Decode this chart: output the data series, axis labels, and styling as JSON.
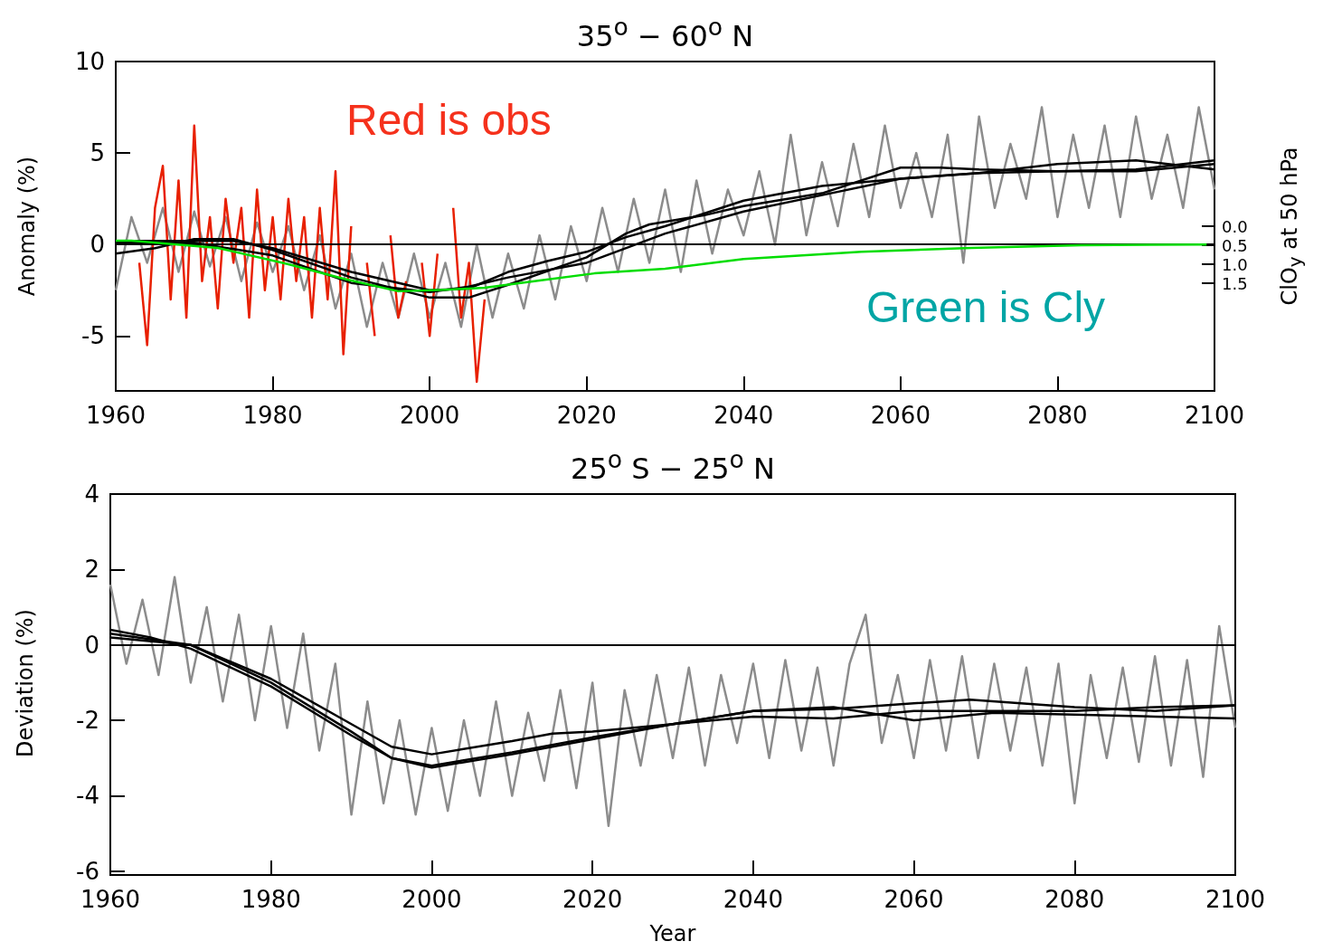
{
  "chart_data": [
    {
      "type": "line",
      "title": "35$^{o}$ − 60$^{o}$ N",
      "ylabel": "Anomaly (%)",
      "y2label": "ClO$_{y}$ at 50 hPa",
      "annotations": [
        "Red is obs",
        "Green is Cly"
      ],
      "xlim": [
        1960,
        2100
      ],
      "xticks": [
        1960,
        1980,
        2000,
        2020,
        2040,
        2060,
        2080,
        2100
      ],
      "ylim": [
        -8,
        10
      ],
      "yticks": [
        -5,
        0,
        5,
        10
      ],
      "y2lim": [
        4.33,
        -4.33
      ],
      "y2ticks": [
        {
          "value": 0,
          "label": "0.0"
        },
        0.5,
        {
          "value": 1,
          "label": "1.0"
        },
        1.5
      ],
      "grid": false,
      "marker": "none",
      "ref_lines": [
        {
          "axis": "y",
          "value": 0,
          "color": "#000000"
        }
      ],
      "series": [
        {
          "color": "#8c8c8c",
          "x": [
            1960,
            1962,
            1964,
            1966,
            1968,
            1970,
            1972,
            1974,
            1976,
            1978,
            1980,
            1982,
            1984,
            1986,
            1988,
            1990,
            1992,
            1994,
            1996,
            1998,
            2000,
            2002,
            2004,
            2006,
            2008,
            2010,
            2012,
            2014,
            2016,
            2018,
            2020,
            2022,
            2024,
            2026,
            2028,
            2030,
            2032,
            2034,
            2036,
            2038,
            2040,
            2042,
            2044,
            2046,
            2048,
            2050,
            2052,
            2054,
            2056,
            2058,
            2060,
            2062,
            2064,
            2066,
            2068,
            2070,
            2072,
            2074,
            2076,
            2078,
            2080,
            2082,
            2084,
            2086,
            2088,
            2090,
            2092,
            2094,
            2096,
            2098,
            2100
          ],
          "values": [
            -2.5,
            1.5,
            -1.0,
            2.0,
            -1.5,
            1.8,
            -1.2,
            1.5,
            -2.0,
            1.2,
            -1.5,
            1.0,
            -2.5,
            0.5,
            -3.5,
            -0.5,
            -4.5,
            -1.0,
            -4.0,
            -0.5,
            -4.0,
            -1.0,
            -4.5,
            0.0,
            -4.0,
            -0.5,
            -3.5,
            0.5,
            -3.0,
            1.0,
            -2.0,
            2.0,
            -1.5,
            2.5,
            -1.0,
            3.0,
            -1.5,
            3.5,
            -0.5,
            3.0,
            0.5,
            4.0,
            0.0,
            6.0,
            0.5,
            4.5,
            1.0,
            5.5,
            1.5,
            6.5,
            2.0,
            5.0,
            1.5,
            6.0,
            -1.0,
            7.0,
            2.0,
            5.5,
            2.5,
            7.5,
            1.5,
            6.0,
            2.0,
            6.5,
            1.5,
            7.0,
            2.5,
            6.0,
            2.0,
            7.5,
            3.0
          ]
        },
        {
          "color": "#e82000",
          "x": [
            1963,
            1964,
            1965,
            1966,
            1967,
            1968,
            1969,
            1970,
            1971,
            1972,
            1973,
            1974,
            1975,
            1976,
            1977,
            1978,
            1979,
            1980,
            1981,
            1982,
            1983,
            1984,
            1985,
            1986,
            1987,
            1988,
            1989,
            1990,
            1991,
            1992,
            1993,
            1994,
            1995,
            1996,
            1997,
            1998,
            1999,
            2000,
            2001,
            2002,
            2003,
            2004,
            2005,
            2006,
            2007
          ],
          "values": [
            -1,
            -5.5,
            2,
            4.3,
            -3,
            3.5,
            -4,
            6.5,
            -2,
            1.5,
            -3.5,
            2.5,
            -1,
            2,
            -4,
            3,
            -2.5,
            1.5,
            -3,
            2.5,
            -2,
            1.5,
            -4,
            2,
            -3,
            4,
            -6,
            1,
            null,
            -1,
            -5,
            null,
            0.5,
            -4,
            -2,
            null,
            -1,
            -5,
            -0.5,
            null,
            2,
            -4,
            -1,
            -7.5,
            -3
          ]
        },
        {
          "color": "#000000",
          "x": [
            1960,
            1970,
            1975,
            1980,
            1990,
            2000,
            2005,
            2010,
            2015,
            2020,
            2025,
            2030,
            2040,
            2050,
            2060,
            2070,
            2080,
            2090,
            2100
          ],
          "values": [
            0.2,
            0.2,
            0.2,
            -0.2,
            -1.5,
            -2.5,
            -2.4,
            -1.5,
            -0.9,
            -0.4,
            0.4,
            1.0,
            2.4,
            3.2,
            3.6,
            3.9,
            4.4,
            4.6,
            4.1
          ]
        },
        {
          "color": "#000000",
          "x": [
            1960,
            1965,
            1970,
            1975,
            1980,
            1990,
            2000,
            2005,
            2010,
            2020,
            2025,
            2028,
            2035,
            2040,
            2050,
            2060,
            2065,
            2070,
            2080,
            2090,
            2100
          ],
          "values": [
            -0.5,
            -0.2,
            0.3,
            0.3,
            -0.3,
            -1.8,
            -2.9,
            -2.9,
            -2.2,
            -0.7,
            0.6,
            1.1,
            1.6,
            2.1,
            2.8,
            4.2,
            4.2,
            4.1,
            4.0,
            4.1,
            4.6
          ]
        },
        {
          "color": "#000000",
          "x": [
            1960,
            1970,
            1980,
            1990,
            2000,
            2005,
            2010,
            2020,
            2030,
            2040,
            2050,
            2060,
            2070,
            2080,
            2090,
            2100
          ],
          "values": [
            0.1,
            0.1,
            -0.6,
            -2.1,
            -2.6,
            -2.3,
            -1.8,
            -1.0,
            0.6,
            1.8,
            2.7,
            3.6,
            3.9,
            4.0,
            4.0,
            4.4
          ]
        },
        {
          "color": "#00dd00",
          "axis": "y2",
          "x": [
            1960,
            1962,
            1973,
            1982,
            1989,
            1996,
            2002,
            2007,
            2014,
            2021,
            2030,
            2040,
            2055,
            2069,
            2083,
            2099
          ],
          "values": [
            0.38,
            0.38,
            0.57,
            1.0,
            1.38,
            1.71,
            1.67,
            1.62,
            1.43,
            1.24,
            1.12,
            0.86,
            0.67,
            0.57,
            0.5,
            0.48
          ]
        }
      ]
    },
    {
      "type": "line",
      "title": "25$^{o}$ S − 25$^{o}$ N",
      "xlabel": "Year",
      "ylabel": "Deviation (%)",
      "xlim": [
        1960,
        2100
      ],
      "xticks": [
        1960,
        1980,
        2000,
        2020,
        2040,
        2060,
        2080,
        2100
      ],
      "ylim": [
        -6.1,
        4
      ],
      "yticks": [
        -6,
        -4,
        -2,
        0,
        2,
        4
      ],
      "grid": false,
      "marker": "none",
      "ref_lines": [
        {
          "axis": "y",
          "value": 0,
          "color": "#000000"
        }
      ],
      "series": [
        {
          "color": "#8c8c8c",
          "x": [
            1960,
            1962,
            1964,
            1966,
            1968,
            1970,
            1972,
            1974,
            1976,
            1978,
            1980,
            1982,
            1984,
            1986,
            1988,
            1990,
            1992,
            1994,
            1996,
            1998,
            2000,
            2002,
            2004,
            2006,
            2008,
            2010,
            2012,
            2014,
            2016,
            2018,
            2020,
            2022,
            2024,
            2026,
            2028,
            2030,
            2032,
            2034,
            2036,
            2038,
            2040,
            2042,
            2044,
            2046,
            2048,
            2050,
            2052,
            2054,
            2056,
            2058,
            2060,
            2062,
            2064,
            2066,
            2068,
            2070,
            2072,
            2074,
            2076,
            2078,
            2080,
            2082,
            2084,
            2086,
            2088,
            2090,
            2092,
            2094,
            2096,
            2098,
            2100
          ],
          "values": [
            1.6,
            -0.5,
            1.2,
            -0.8,
            1.8,
            -1.0,
            1.0,
            -1.5,
            0.8,
            -2.0,
            0.5,
            -2.2,
            0.3,
            -2.8,
            -0.5,
            -4.5,
            -1.5,
            -4.2,
            -2.0,
            -4.5,
            -2.2,
            -4.4,
            -2.0,
            -4.0,
            -1.5,
            -4.0,
            -1.8,
            -3.6,
            -1.2,
            -3.8,
            -1.0,
            -4.8,
            -1.2,
            -3.2,
            -0.8,
            -3.0,
            -0.6,
            -3.2,
            -0.8,
            -2.6,
            -0.5,
            -3.0,
            -0.4,
            -2.8,
            -0.6,
            -3.2,
            -0.5,
            0.8,
            -2.6,
            -0.8,
            -3.0,
            -0.4,
            -2.8,
            -0.3,
            -3.0,
            -0.5,
            -2.8,
            -0.6,
            -3.2,
            -0.5,
            -4.2,
            -0.8,
            -3.0,
            -0.6,
            -3.1,
            -0.3,
            -3.2,
            -0.4,
            -3.5,
            0.5,
            -2.2
          ]
        },
        {
          "color": "#000000",
          "x": [
            1960,
            1965,
            1970,
            1980,
            1990,
            1995,
            2000,
            2010,
            2020,
            2030,
            2040,
            2050,
            2060,
            2067,
            2080,
            2090,
            2100
          ],
          "values": [
            0.4,
            0.2,
            -0.1,
            -1.1,
            -2.4,
            -3.0,
            -3.25,
            -2.9,
            -2.5,
            -2.1,
            -1.75,
            -1.7,
            -1.55,
            -1.45,
            -1.65,
            -1.75,
            -1.6
          ]
        },
        {
          "color": "#000000",
          "x": [
            1960,
            1970,
            1980,
            1990,
            1995,
            2000,
            2010,
            2015,
            2020,
            2030,
            2040,
            2050,
            2060,
            2070,
            2080,
            2090,
            2100
          ],
          "values": [
            0.3,
            0.0,
            -0.9,
            -2.1,
            -2.7,
            -2.9,
            -2.55,
            -2.35,
            -2.3,
            -2.1,
            -1.75,
            -1.65,
            -2.0,
            -1.8,
            -1.85,
            -1.9,
            -1.95
          ]
        },
        {
          "color": "#000000",
          "x": [
            1960,
            1970,
            1980,
            1990,
            1995,
            2000,
            2010,
            2020,
            2030,
            2040,
            2050,
            2060,
            2070,
            2080,
            2090,
            2100
          ],
          "values": [
            0.2,
            0.0,
            -1.0,
            -2.3,
            -3.0,
            -3.2,
            -2.85,
            -2.45,
            -2.1,
            -1.9,
            -1.95,
            -1.75,
            -1.75,
            -1.75,
            -1.65,
            -1.6
          ]
        }
      ]
    }
  ]
}
